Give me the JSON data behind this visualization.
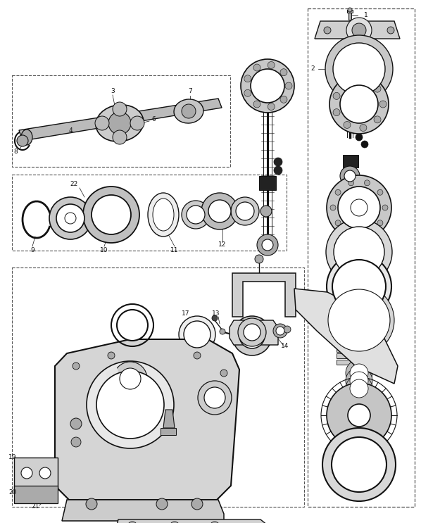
{
  "bg_color": "#ffffff",
  "line_color": "#111111",
  "gray_light": "#d0d0d0",
  "gray_mid": "#aaaaaa",
  "gray_dark": "#666666",
  "figsize": [
    5.98,
    7.43
  ],
  "dpi": 100
}
